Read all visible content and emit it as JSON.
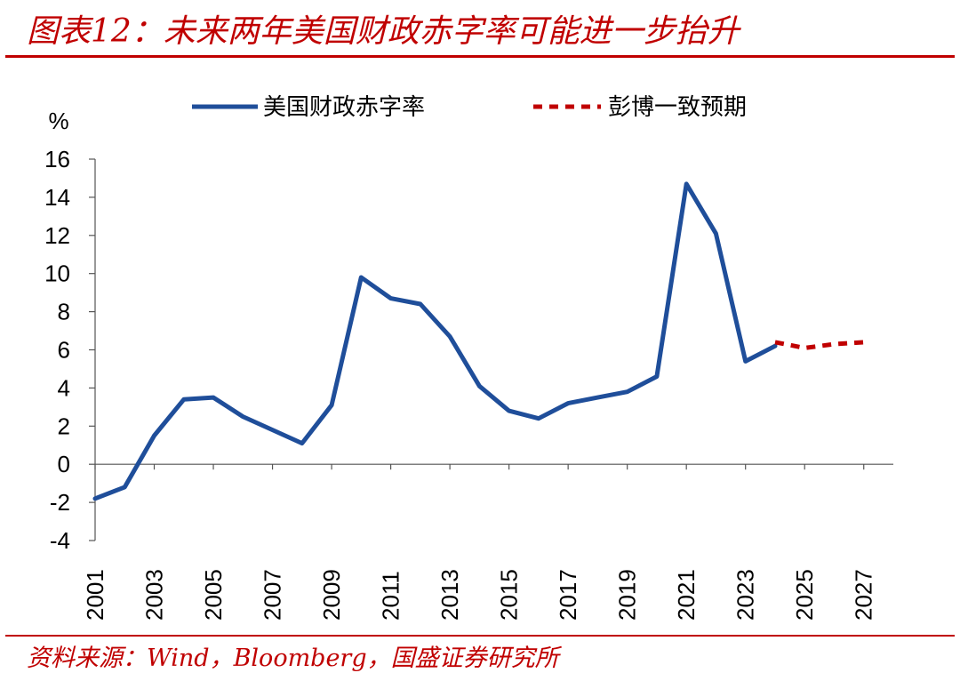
{
  "header": {
    "title": "图表12：未来两年美国财政赤字率可能进一步抬升"
  },
  "footer": {
    "source": "资料来源：Wind，Bloomberg，国盛证券研究所"
  },
  "colors": {
    "accent": "#c00000",
    "series_actual": "#1f4e9a",
    "series_forecast": "#c00000"
  },
  "chart_data": {
    "type": "line",
    "ylabel": "%",
    "xlabel": "",
    "ylim": [
      -4,
      16
    ],
    "yticks": [
      16,
      14,
      12,
      10,
      8,
      6,
      4,
      2,
      0,
      -2,
      -4
    ],
    "xlim": [
      2001,
      2028
    ],
    "xtick_labels": [
      "2001",
      "2003",
      "2005",
      "2007",
      "2009",
      "2011",
      "2013",
      "2015",
      "2017",
      "2019",
      "2021",
      "2023",
      "2025",
      "2027"
    ],
    "legend_placement": "top-center",
    "grid": false,
    "series": [
      {
        "name": "美国财政赤字率",
        "style": "solid",
        "x": [
          2001,
          2002,
          2003,
          2004,
          2005,
          2006,
          2007,
          2008,
          2009,
          2010,
          2011,
          2012,
          2013,
          2014,
          2015,
          2016,
          2017,
          2018,
          2019,
          2020,
          2021,
          2022,
          2023,
          2024
        ],
        "y": [
          -1.8,
          -1.2,
          1.5,
          3.4,
          3.5,
          2.5,
          1.8,
          1.1,
          3.1,
          9.8,
          8.7,
          8.4,
          6.7,
          4.1,
          2.8,
          2.4,
          3.2,
          3.5,
          3.8,
          4.6,
          14.7,
          12.1,
          5.4,
          6.2
        ]
      },
      {
        "name": "彭博一致预期",
        "style": "dashed",
        "x": [
          2024,
          2025,
          2026,
          2027
        ],
        "y": [
          6.4,
          6.1,
          6.3,
          6.4
        ]
      }
    ]
  }
}
